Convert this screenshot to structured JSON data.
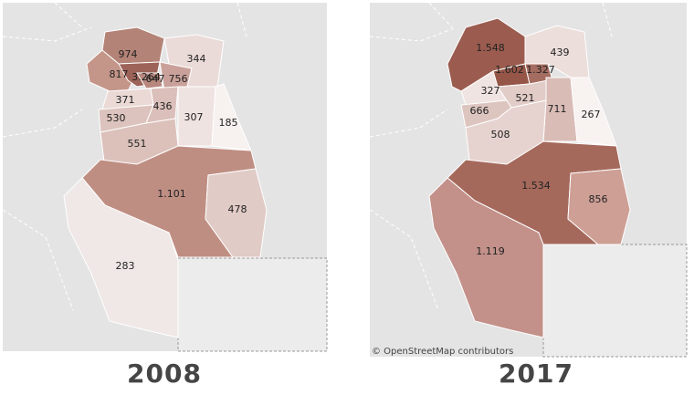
{
  "maps": [
    {
      "year": "2008",
      "regions": [
        {
          "label": "974",
          "color": "#b48377"
        },
        {
          "label": "817",
          "color": "#c49689"
        },
        {
          "label": "3.264",
          "color": "#9d6358"
        },
        {
          "label": "647",
          "color": "#b8887e"
        },
        {
          "label": "756",
          "color": "#c9a19a"
        },
        {
          "label": "344",
          "color": "#eadbd8"
        },
        {
          "label": "371",
          "color": "#ead9d5"
        },
        {
          "label": "436",
          "color": "#dbbfba"
        },
        {
          "label": "530",
          "color": "#dcc3bd"
        },
        {
          "label": "307",
          "color": "#efe3e1"
        },
        {
          "label": "185",
          "color": "#f7f1f0"
        },
        {
          "label": "551",
          "color": "#dcc1bb"
        },
        {
          "label": "1.101",
          "color": "#bf8e83"
        },
        {
          "label": "478",
          "color": "#e1cbc6"
        },
        {
          "label": "283",
          "color": "#efe8e6"
        }
      ]
    },
    {
      "year": "2017",
      "attribution": "© OpenStreetMap contributors",
      "regions": [
        {
          "label": "1.548",
          "color": "#9b5c4f"
        },
        {
          "label": "439",
          "color": "#ecdedb"
        },
        {
          "label": "1.602",
          "color": "#955648"
        },
        {
          "label": "1.327",
          "color": "#a56c61"
        },
        {
          "label": "327",
          "color": "#f0e4e2"
        },
        {
          "label": "521",
          "color": "#e2ccc7"
        },
        {
          "label": "666",
          "color": "#ddc5bf"
        },
        {
          "label": "711",
          "color": "#d9bcb6"
        },
        {
          "label": "267",
          "color": "#f8f2f1"
        },
        {
          "label": "508",
          "color": "#e6d3cf"
        },
        {
          "label": "1.534",
          "color": "#a5695c"
        },
        {
          "label": "856",
          "color": "#ce9f95"
        },
        {
          "label": "1.119",
          "color": "#c3918a"
        }
      ]
    }
  ]
}
